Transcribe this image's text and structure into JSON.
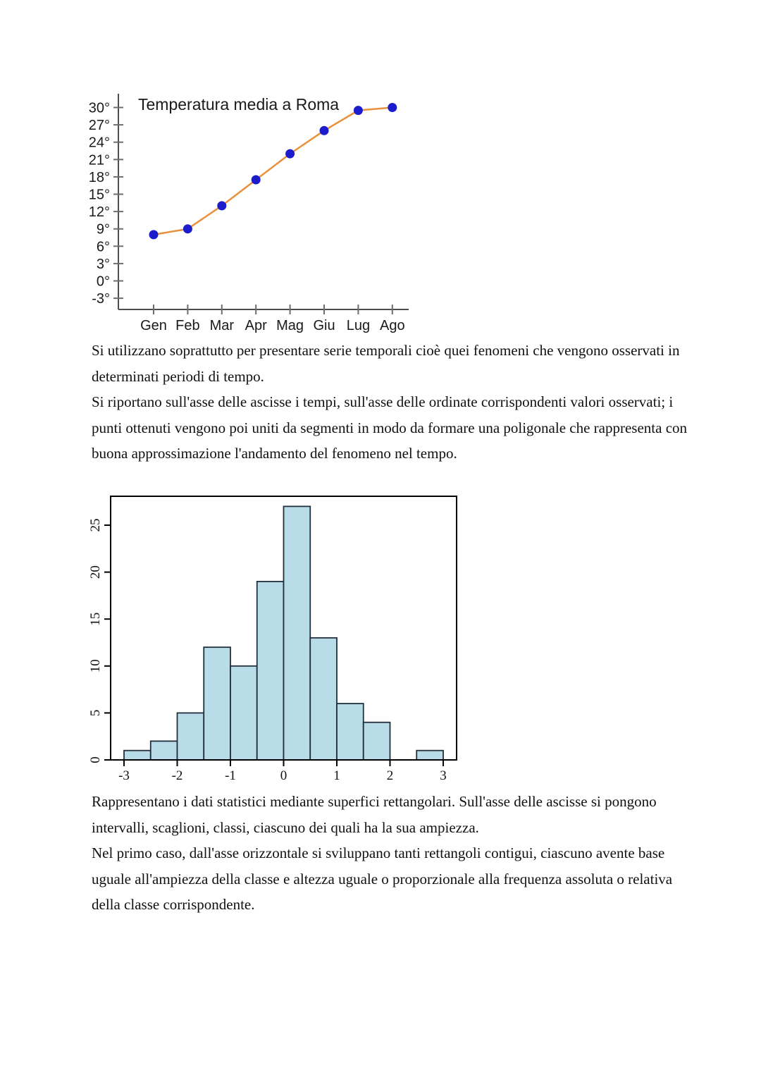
{
  "page": {
    "background": "#ffffff",
    "text_color": "#111111"
  },
  "text_blocks": {
    "line_chart": {
      "p1": "Si utilizzano soprattutto per presentare serie temporali cioè quei fenomeni che vengono osservati in determinati periodi di tempo.",
      "p2": "Si riportano sull'asse delle ascisse i tempi, sull'asse delle ordinate corrispondenti valori osservati; i punti ottenuti vengono poi uniti da segmenti in modo da formare una poligonale che rappresenta con buona approssimazione l'andamento del fenomeno nel tempo."
    },
    "histogram": {
      "p1": "Rappresentano i dati statistici mediante superfici rettangolari. Sull'asse delle ascisse si pongono intervalli, scaglioni, classi, ciascuno dei quali ha la sua ampiezza.",
      "p2": "Nel primo caso, dall'asse orizzontale si sviluppano tanti rettangoli contigui, ciascuno avente base uguale all'ampiezza della classe e altezza uguale o proporzionale alla frequenza assoluta o relativa della classe corrispondente."
    }
  },
  "chart_data": [
    {
      "type": "line",
      "title": "Temperatura media a Roma",
      "categories": [
        "Gen",
        "Feb",
        "Mar",
        "Apr",
        "Mag",
        "Giu",
        "Lug",
        "Ago"
      ],
      "values": [
        8,
        9,
        13,
        17.5,
        22,
        26,
        29.5,
        30
      ],
      "xlabel": "",
      "ylabel": "",
      "y_ticks": [
        30,
        27,
        24,
        21,
        18,
        15,
        12,
        9,
        6,
        3,
        0,
        -3
      ],
      "y_tick_suffix": "°",
      "ylim": [
        -6,
        32
      ],
      "grid": false,
      "legend": "none",
      "line_color": "#e8913d",
      "marker_color": "#1c1ccd",
      "axis_color": "#4d4d4d",
      "tick_color": "#6e6e6e",
      "label_color": "#1a1a1a"
    },
    {
      "type": "histogram",
      "title": "",
      "bin_start": -3,
      "bin_width": 0.5,
      "counts": [
        1,
        2,
        5,
        12,
        10,
        19,
        27,
        13,
        6,
        4,
        0,
        1
      ],
      "x_ticks": [
        -3,
        -2,
        -1,
        0,
        1,
        2,
        3
      ],
      "y_ticks": [
        0,
        5,
        10,
        15,
        20,
        25
      ],
      "xlim": [
        -3.25,
        3.25
      ],
      "ylim": [
        0,
        28
      ],
      "grid": false,
      "legend": "none",
      "bar_fill": "#b9dce9",
      "bar_border": "#21303b",
      "box_color": "#000000",
      "label_color": "#111111"
    }
  ]
}
